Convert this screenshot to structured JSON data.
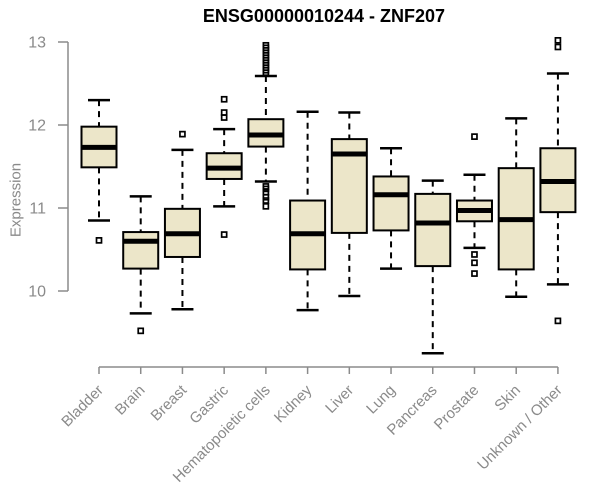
{
  "chart_data": {
    "type": "boxplot",
    "title": "ENSG00000010244 - ZNF207",
    "xlabel": "",
    "ylabel": "Expression",
    "ylim": [
      10,
      13
    ],
    "yticks": [
      10,
      11,
      12,
      13
    ],
    "grid": false,
    "legend": "none",
    "colors": {
      "box_fill": "#ece6c9",
      "box_stroke": "#000000",
      "axis_line": "#8b8b8b",
      "axis_text": "#8a8a8a",
      "title_text": "#000000",
      "background": "#ffffff"
    },
    "categories": [
      "Bladder",
      "Brain",
      "Breast",
      "Gastric",
      "Hematopoietic cells",
      "Kidney",
      "Liver",
      "Lung",
      "Pancreas",
      "Prostate",
      "Skin",
      "Unknown / Other"
    ],
    "boxes": [
      {
        "category": "Bladder",
        "whisker_low": 10.85,
        "q1": 11.49,
        "median": 11.73,
        "q3": 11.98,
        "whisker_high": 12.3,
        "outliers": [
          10.61
        ]
      },
      {
        "category": "Brain",
        "whisker_low": 9.73,
        "q1": 10.27,
        "median": 10.6,
        "q3": 10.71,
        "whisker_high": 11.14,
        "outliers": [
          9.52
        ]
      },
      {
        "category": "Breast",
        "whisker_low": 9.78,
        "q1": 10.41,
        "median": 10.69,
        "q3": 10.99,
        "whisker_high": 11.7,
        "outliers": [
          11.89
        ]
      },
      {
        "category": "Gastric",
        "whisker_low": 11.02,
        "q1": 11.35,
        "median": 11.48,
        "q3": 11.66,
        "whisker_high": 11.95,
        "outliers": [
          12.31,
          12.15,
          12.09,
          10.68
        ]
      },
      {
        "category": "Hematopoietic cells",
        "whisker_low": 11.32,
        "q1": 11.74,
        "median": 11.88,
        "q3": 12.07,
        "whisker_high": 12.59,
        "outliers": [
          12.96,
          12.93,
          12.9,
          12.87,
          12.84,
          12.81,
          12.78,
          12.75,
          12.72,
          12.69,
          12.66,
          12.63,
          11.26,
          11.23,
          11.19,
          11.13,
          11.09,
          11.02
        ]
      },
      {
        "category": "Kidney",
        "whisker_low": 9.77,
        "q1": 10.26,
        "median": 10.69,
        "q3": 11.09,
        "whisker_high": 12.16,
        "outliers": []
      },
      {
        "category": "Liver",
        "whisker_low": 9.94,
        "q1": 10.7,
        "median": 11.65,
        "q3": 11.83,
        "whisker_high": 12.15,
        "outliers": []
      },
      {
        "category": "Lung",
        "whisker_low": 10.27,
        "q1": 10.73,
        "median": 11.16,
        "q3": 11.38,
        "whisker_high": 11.72,
        "outliers": []
      },
      {
        "category": "Pancreas",
        "whisker_low": 9.25,
        "q1": 10.3,
        "median": 10.82,
        "q3": 11.17,
        "whisker_high": 11.33,
        "outliers": []
      },
      {
        "category": "Prostate",
        "whisker_low": 10.52,
        "q1": 10.84,
        "median": 10.97,
        "q3": 11.09,
        "whisker_high": 11.4,
        "outliers": [
          11.86,
          10.44,
          10.34,
          10.21
        ]
      },
      {
        "category": "Skin",
        "whisker_low": 9.93,
        "q1": 10.26,
        "median": 10.86,
        "q3": 11.48,
        "whisker_high": 12.08,
        "outliers": []
      },
      {
        "category": "Unknown / Other",
        "whisker_low": 10.08,
        "q1": 10.95,
        "median": 11.32,
        "q3": 11.72,
        "whisker_high": 12.62,
        "outliers": [
          13.02,
          12.94,
          9.64
        ]
      }
    ]
  }
}
